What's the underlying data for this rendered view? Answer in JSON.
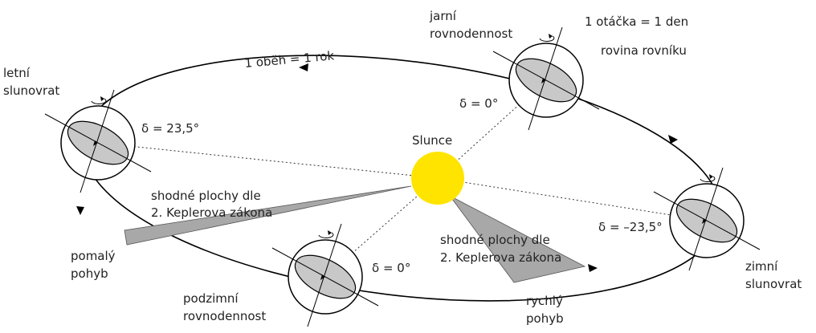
{
  "labels": {
    "spring_equinox": [
      "jarní",
      "rovnodennost"
    ],
    "rotation": "1 otáčka = 1 den",
    "equator_plane": "rovina rovníku",
    "delta_spring": "δ = 0°",
    "revolution": "1 oběh = 1 rok",
    "summer_solstice": [
      "letní",
      "slunovrat"
    ],
    "delta_summer": "δ = 23,5°",
    "sun": "Slunce",
    "kepler_left": [
      "shodné plochy dle",
      "2. Keplerova zákona"
    ],
    "delta_winter": "δ = –23,5°",
    "kepler_right": [
      "shodné plochy dle",
      "2. Keplerova zákona"
    ],
    "slow_motion": [
      "pomalý",
      "pohyb"
    ],
    "delta_autumn": "δ = 0°",
    "winter_solstice": [
      "zimní",
      "slunovrat"
    ],
    "autumn_equinox": [
      "podzimní",
      "rovnodennost"
    ],
    "fast_motion": [
      "rychlý",
      "pohyb"
    ]
  }
}
